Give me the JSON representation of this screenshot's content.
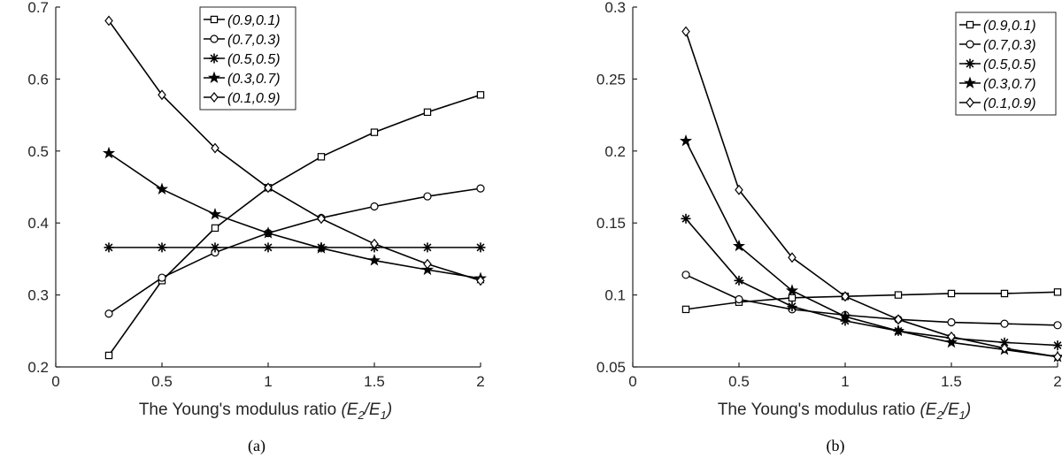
{
  "chart_data": [
    {
      "type": "line",
      "caption": "(a)",
      "xlabel_main": "The Young's modulus ratio ",
      "xlabel_symbol": "(E",
      "xlabel_sub1": "2",
      "xlabel_slash": "/E",
      "xlabel_sub2": "1",
      "xlabel_close": ")",
      "xlim": [
        0,
        2
      ],
      "ylim": [
        0.2,
        0.7
      ],
      "xticks": [
        0,
        0.5,
        1,
        1.5,
        2
      ],
      "xtick_labels": [
        "0",
        "0.5",
        "1",
        "1.5",
        "2"
      ],
      "yticks": [
        0.2,
        0.3,
        0.4,
        0.5,
        0.6,
        0.7
      ],
      "ytick_labels": [
        "0.2",
        "0.3",
        "0.4",
        "0.5",
        "0.6",
        "0.7"
      ],
      "grid": false,
      "legend_position": "top-center",
      "x": [
        0.25,
        0.5,
        0.75,
        1.0,
        1.25,
        1.5,
        1.75,
        2.0
      ],
      "series": [
        {
          "name": "(0.9,0.1)",
          "marker": "square",
          "values": [
            0.216,
            0.32,
            0.393,
            0.449,
            0.492,
            0.526,
            0.554,
            0.578
          ]
        },
        {
          "name": "(0.7,0.3)",
          "marker": "circle",
          "values": [
            0.274,
            0.324,
            0.359,
            0.386,
            0.407,
            0.423,
            0.437,
            0.448
          ]
        },
        {
          "name": "(0.5,0.5)",
          "marker": "asterisk",
          "values": [
            0.366,
            0.366,
            0.366,
            0.366,
            0.366,
            0.366,
            0.366,
            0.366
          ]
        },
        {
          "name": "(0.3,0.7)",
          "marker": "star",
          "values": [
            0.497,
            0.447,
            0.412,
            0.386,
            0.365,
            0.348,
            0.335,
            0.323
          ]
        },
        {
          "name": "(0.1,0.9)",
          "marker": "diamond",
          "values": [
            0.681,
            0.578,
            0.504,
            0.449,
            0.406,
            0.371,
            0.343,
            0.32
          ]
        }
      ]
    },
    {
      "type": "line",
      "caption": "(b)",
      "xlabel_main": "The Young's modulus ratio ",
      "xlabel_symbol": "(E",
      "xlabel_sub1": "2",
      "xlabel_slash": "/E",
      "xlabel_sub2": "1",
      "xlabel_close": ")",
      "xlim": [
        0,
        2
      ],
      "ylim": [
        0.05,
        0.3
      ],
      "xticks": [
        0,
        0.5,
        1,
        1.5,
        2
      ],
      "xtick_labels": [
        "0",
        "0.5",
        "1",
        "1.5",
        "2"
      ],
      "yticks": [
        0.05,
        0.1,
        0.15,
        0.2,
        0.25,
        0.3
      ],
      "ytick_labels": [
        "0.05",
        "0.1",
        "0.15",
        "0.2",
        "0.25",
        "0.3"
      ],
      "grid": false,
      "legend_position": "top-right",
      "x": [
        0.25,
        0.5,
        0.75,
        1.0,
        1.25,
        1.5,
        1.75,
        2.0
      ],
      "series": [
        {
          "name": "(0.9,0.1)",
          "marker": "square",
          "values": [
            0.09,
            0.095,
            0.098,
            0.099,
            0.1,
            0.101,
            0.101,
            0.102
          ]
        },
        {
          "name": "(0.7,0.3)",
          "marker": "circle",
          "values": [
            0.114,
            0.097,
            0.09,
            0.086,
            0.083,
            0.081,
            0.08,
            0.079
          ]
        },
        {
          "name": "(0.5,0.5)",
          "marker": "asterisk",
          "values": [
            0.153,
            0.11,
            0.092,
            0.082,
            0.075,
            0.07,
            0.067,
            0.065
          ]
        },
        {
          "name": "(0.3,0.7)",
          "marker": "star",
          "values": [
            0.207,
            0.134,
            0.103,
            0.085,
            0.075,
            0.067,
            0.062,
            0.057
          ]
        },
        {
          "name": "(0.1,0.9)",
          "marker": "diamond",
          "values": [
            0.283,
            0.173,
            0.126,
            0.099,
            0.083,
            0.071,
            0.063,
            0.057
          ]
        }
      ]
    }
  ]
}
